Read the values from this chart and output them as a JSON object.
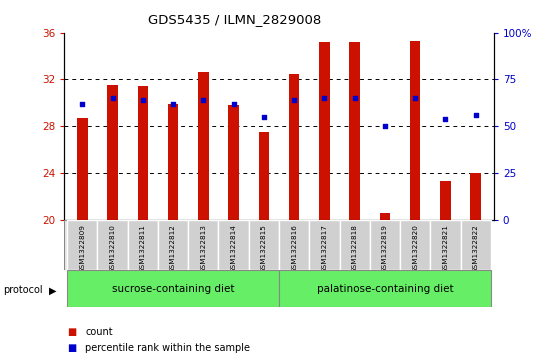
{
  "title": "GDS5435 / ILMN_2829008",
  "samples": [
    "GSM1322809",
    "GSM1322810",
    "GSM1322811",
    "GSM1322812",
    "GSM1322813",
    "GSM1322814",
    "GSM1322815",
    "GSM1322816",
    "GSM1322817",
    "GSM1322818",
    "GSM1322819",
    "GSM1322820",
    "GSM1322821",
    "GSM1322822"
  ],
  "counts": [
    28.7,
    31.5,
    31.4,
    29.9,
    32.6,
    29.8,
    27.5,
    32.5,
    35.2,
    35.2,
    20.6,
    35.3,
    23.3,
    24.0
  ],
  "percentiles": [
    62,
    65,
    64,
    62,
    64,
    62,
    55,
    64,
    65,
    65,
    50,
    65,
    54,
    56
  ],
  "bar_color": "#cc1100",
  "dot_color": "#0000cc",
  "ylim_left": [
    20,
    36
  ],
  "ylim_right": [
    0,
    100
  ],
  "yticks_left": [
    20,
    24,
    28,
    32,
    36
  ],
  "yticks_right": [
    0,
    25,
    50,
    75,
    100
  ],
  "yticklabels_right": [
    "0",
    "25",
    "50",
    "75",
    "100%"
  ],
  "dotted_grid": [
    24,
    28,
    32
  ],
  "sucrose_count": 7,
  "palatinose_count": 7,
  "group1_label": "sucrose-containing diet",
  "group2_label": "palatinose-containing diet",
  "group_color": "#66ee66",
  "protocol_label": "protocol",
  "legend_items": [
    {
      "color": "#cc1100",
      "label": "count"
    },
    {
      "color": "#0000cc",
      "label": "percentile rank within the sample"
    }
  ],
  "bar_width": 0.35,
  "cell_color": "#d0d0d0",
  "cell_edge_color": "#ffffff",
  "background_color": "#ffffff"
}
